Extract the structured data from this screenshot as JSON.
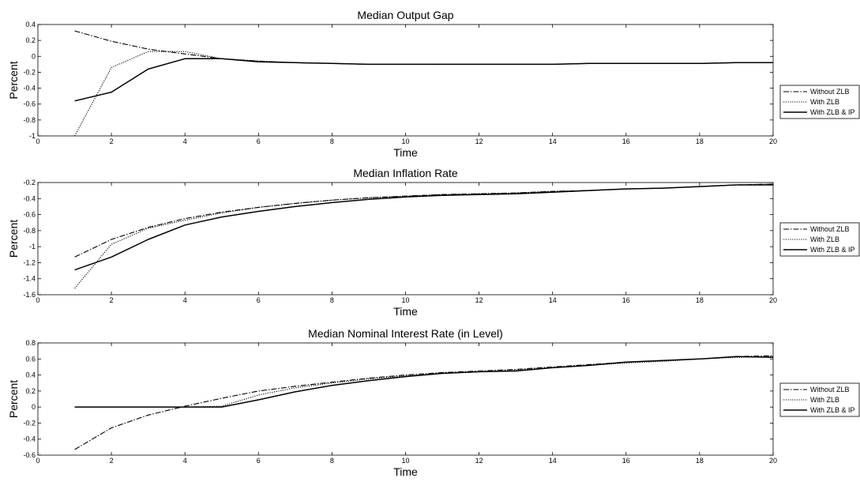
{
  "chart_data": [
    {
      "type": "line",
      "title": "Median Output Gap",
      "xlabel": "Time",
      "ylabel": "Percent",
      "xlim": [
        0,
        20
      ],
      "ylim": [
        -1,
        0.4
      ],
      "xticks": [
        0,
        2,
        4,
        6,
        8,
        10,
        12,
        14,
        16,
        18,
        20
      ],
      "yticks": [
        -1,
        -0.8,
        -0.6,
        -0.4,
        -0.2,
        0,
        0.2,
        0.4
      ],
      "x": [
        1,
        2,
        3,
        4,
        5,
        6,
        7,
        8,
        9,
        10,
        11,
        12,
        13,
        14,
        15,
        16,
        17,
        18,
        19,
        20
      ],
      "grid": false,
      "legend_position": "outside-right",
      "series": [
        {
          "name": "Without ZLB",
          "style": "dashdot",
          "values": [
            0.32,
            0.19,
            0.09,
            0.03,
            -0.03,
            -0.06,
            -0.08,
            -0.09,
            -0.1,
            -0.1,
            -0.1,
            -0.1,
            -0.1,
            -0.1,
            -0.09,
            -0.09,
            -0.09,
            -0.09,
            -0.08,
            -0.08
          ]
        },
        {
          "name": "With ZLB",
          "style": "dotted",
          "values": [
            -1.0,
            -0.14,
            0.06,
            0.06,
            -0.03,
            -0.06,
            -0.08,
            -0.09,
            -0.1,
            -0.1,
            -0.1,
            -0.1,
            -0.1,
            -0.1,
            -0.09,
            -0.09,
            -0.09,
            -0.09,
            -0.08,
            -0.08
          ]
        },
        {
          "name": "With ZLB & IP",
          "style": "solid",
          "values": [
            -0.56,
            -0.45,
            -0.16,
            -0.03,
            -0.03,
            -0.07,
            -0.08,
            -0.09,
            -0.1,
            -0.1,
            -0.1,
            -0.1,
            -0.1,
            -0.1,
            -0.09,
            -0.09,
            -0.09,
            -0.09,
            -0.08,
            -0.08
          ]
        }
      ]
    },
    {
      "type": "line",
      "title": "Median Inflation Rate",
      "xlabel": "Time",
      "ylabel": "Percent",
      "xlim": [
        0,
        20
      ],
      "ylim": [
        -1.6,
        -0.2
      ],
      "xticks": [
        0,
        2,
        4,
        6,
        8,
        10,
        12,
        14,
        16,
        18,
        20
      ],
      "yticks": [
        -1.6,
        -1.4,
        -1.2,
        -1,
        -0.8,
        -0.6,
        -0.4,
        -0.2
      ],
      "x": [
        1,
        2,
        3,
        4,
        5,
        6,
        7,
        8,
        9,
        10,
        11,
        12,
        13,
        14,
        15,
        16,
        17,
        18,
        19,
        20
      ],
      "grid": false,
      "legend_position": "outside-right",
      "series": [
        {
          "name": "Without ZLB",
          "style": "dashdot",
          "values": [
            -1.13,
            -0.91,
            -0.76,
            -0.65,
            -0.57,
            -0.51,
            -0.46,
            -0.42,
            -0.39,
            -0.37,
            -0.35,
            -0.34,
            -0.33,
            -0.31,
            -0.3,
            -0.28,
            -0.27,
            -0.25,
            -0.23,
            -0.22
          ]
        },
        {
          "name": "With ZLB",
          "style": "dotted",
          "values": [
            -1.52,
            -0.97,
            -0.77,
            -0.67,
            -0.58,
            -0.51,
            -0.46,
            -0.42,
            -0.39,
            -0.37,
            -0.35,
            -0.34,
            -0.33,
            -0.31,
            -0.3,
            -0.28,
            -0.27,
            -0.25,
            -0.23,
            -0.22
          ]
        },
        {
          "name": "With ZLB & IP",
          "style": "solid",
          "values": [
            -1.29,
            -1.13,
            -0.91,
            -0.73,
            -0.63,
            -0.56,
            -0.5,
            -0.45,
            -0.41,
            -0.38,
            -0.36,
            -0.35,
            -0.34,
            -0.32,
            -0.3,
            -0.28,
            -0.27,
            -0.25,
            -0.23,
            -0.23
          ]
        }
      ]
    },
    {
      "type": "line",
      "title": "Median Nominal Interest Rate (in Level)",
      "xlabel": "Time",
      "ylabel": "Percent",
      "xlim": [
        0,
        20
      ],
      "ylim": [
        -0.6,
        0.8
      ],
      "xticks": [
        0,
        2,
        4,
        6,
        8,
        10,
        12,
        14,
        16,
        18,
        20
      ],
      "yticks": [
        -0.6,
        -0.4,
        -0.2,
        0,
        0.2,
        0.4,
        0.6,
        0.8
      ],
      "x": [
        1,
        2,
        3,
        4,
        5,
        6,
        7,
        8,
        9,
        10,
        11,
        12,
        13,
        14,
        15,
        16,
        17,
        18,
        19,
        20
      ],
      "grid": false,
      "legend_position": "outside-right",
      "series": [
        {
          "name": "Without ZLB",
          "style": "dashdot",
          "values": [
            -0.53,
            -0.26,
            -0.1,
            0.01,
            0.11,
            0.2,
            0.26,
            0.31,
            0.36,
            0.4,
            0.43,
            0.45,
            0.47,
            0.5,
            0.53,
            0.56,
            0.58,
            0.6,
            0.63,
            0.64
          ]
        },
        {
          "name": "With ZLB",
          "style": "dotted",
          "values": [
            0.0,
            0.0,
            0.0,
            0.0,
            0.01,
            0.15,
            0.24,
            0.3,
            0.35,
            0.39,
            0.42,
            0.44,
            0.46,
            0.49,
            0.52,
            0.55,
            0.57,
            0.6,
            0.62,
            0.63
          ]
        },
        {
          "name": "With ZLB & IP",
          "style": "solid",
          "values": [
            0.0,
            0.0,
            0.0,
            0.0,
            0.0,
            0.09,
            0.19,
            0.27,
            0.33,
            0.38,
            0.42,
            0.44,
            0.45,
            0.49,
            0.52,
            0.56,
            0.58,
            0.6,
            0.63,
            0.62
          ]
        }
      ]
    }
  ]
}
